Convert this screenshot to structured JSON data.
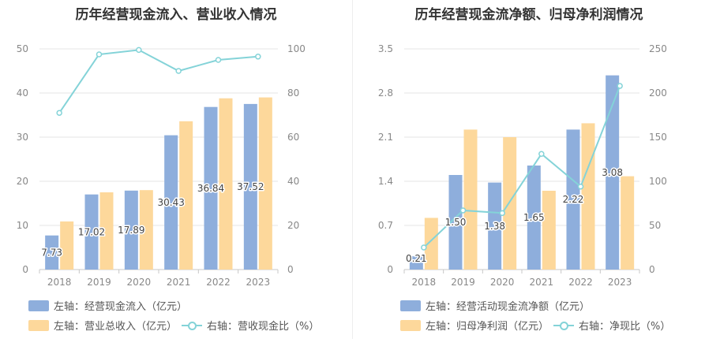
{
  "chart_data": [
    {
      "type": "bar+line",
      "title": "历年经营现金流入、营业收入情况",
      "categories": [
        "2018",
        "2019",
        "2020",
        "2021",
        "2022",
        "2023"
      ],
      "left_axis": {
        "min": 0,
        "max": 50,
        "ticks": [
          "0",
          "10",
          "20",
          "30",
          "40",
          "50"
        ]
      },
      "right_axis": {
        "min": 0,
        "max": 100,
        "ticks": [
          "0",
          "20",
          "40",
          "60",
          "80",
          "100"
        ]
      },
      "series": [
        {
          "name": "左轴：经营现金流入（亿元）",
          "kind": "bar",
          "axis": "left",
          "color": "#8eaedc",
          "values": [
            7.73,
            17.02,
            17.89,
            30.43,
            36.84,
            37.52
          ],
          "labels": [
            "7.73",
            "17.02",
            "17.89",
            "30.43",
            "36.84",
            "37.52"
          ]
        },
        {
          "name": "左轴：营业总收入（亿元）",
          "kind": "bar",
          "axis": "left",
          "color": "#fdd89b",
          "values": [
            10.9,
            17.5,
            18.0,
            33.6,
            38.8,
            39.0
          ]
        },
        {
          "name": "右轴：营收现金比（%）",
          "kind": "line",
          "axis": "right",
          "color": "#84d3d8",
          "values": [
            71,
            97.5,
            99.5,
            90,
            95,
            96.5
          ]
        }
      ]
    },
    {
      "type": "bar+line",
      "title": "历年经营现金流净额、归母净利润情况",
      "categories": [
        "2018",
        "2019",
        "2020",
        "2021",
        "2022",
        "2023"
      ],
      "left_axis": {
        "min": 0,
        "max": 3.5,
        "ticks": [
          "0",
          "0.7",
          "1.4",
          "2.1",
          "2.8",
          "3.5"
        ]
      },
      "right_axis": {
        "min": 0,
        "max": 250,
        "ticks": [
          "0",
          "50",
          "100",
          "150",
          "200",
          "250"
        ]
      },
      "series": [
        {
          "name": "左轴：经营活动现金流净额（亿元）",
          "kind": "bar",
          "axis": "left",
          "color": "#8eaedc",
          "values": [
            0.21,
            1.5,
            1.38,
            1.65,
            2.22,
            3.08
          ],
          "labels": [
            "0.21",
            "1.50",
            "1.38",
            "1.65",
            "2.22",
            "3.08"
          ]
        },
        {
          "name": "左轴：归母净利润（亿元）",
          "kind": "bar",
          "axis": "left",
          "color": "#fdd89b",
          "values": [
            0.82,
            2.22,
            2.1,
            1.25,
            2.32,
            1.48
          ]
        },
        {
          "name": "右轴：净现比（%）",
          "kind": "line",
          "axis": "right",
          "color": "#84d3d8",
          "values": [
            25,
            67,
            64,
            131,
            94,
            208
          ]
        }
      ]
    }
  ]
}
